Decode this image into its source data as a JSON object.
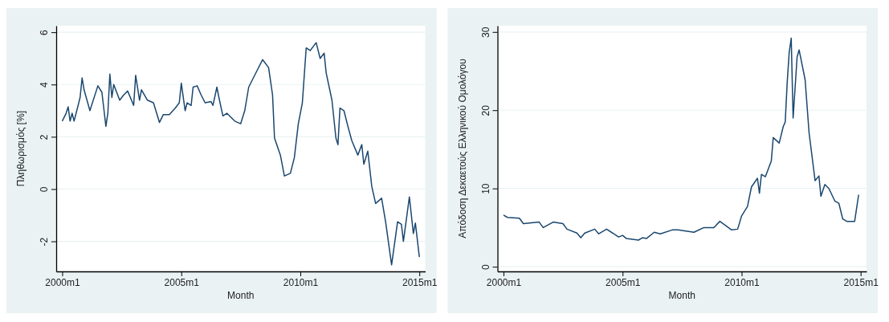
{
  "chart_data": [
    {
      "type": "line",
      "xlabel": "Month",
      "ylabel": "Πληθωρισμός [%]",
      "xlim": [
        "1999-10",
        "2015-04"
      ],
      "ylim": [
        -3.15,
        6.25
      ],
      "xticks": [
        {
          "value": "2000-01",
          "label": "2000m1"
        },
        {
          "value": "2005-01",
          "label": "2005m1"
        },
        {
          "value": "2010-01",
          "label": "2010m1"
        },
        {
          "value": "2015-01",
          "label": "2015m1"
        }
      ],
      "yticks": [
        {
          "value": -2,
          "label": "-2"
        },
        0,
        2,
        4,
        6
      ],
      "grid": "y",
      "line_style": "solid",
      "series": [
        {
          "color": "#1a476f",
          "x": [
            "2000-01",
            "2000-03",
            "2000-04",
            "2000-05",
            "2000-06",
            "2000-07",
            "2000-08",
            "2000-09",
            "2000-10",
            "2000-11",
            "2000-12",
            "2001-03",
            "2001-07",
            "2001-09",
            "2001-11",
            "2001-12",
            "2002-01",
            "2002-02",
            "2002-03",
            "2002-06",
            "2002-08",
            "2002-10",
            "2003-01",
            "2003-02",
            "2003-04",
            "2003-05",
            "2003-08",
            "2003-11",
            "2004-02",
            "2004-04",
            "2004-07",
            "2004-10",
            "2004-12",
            "2005-01",
            "2005-03",
            "2005-04",
            "2005-06",
            "2005-07",
            "2005-09",
            "2005-11",
            "2006-01",
            "2006-04",
            "2006-05",
            "2006-07",
            "2006-08",
            "2006-10",
            "2006-12",
            "2007-04",
            "2007-07",
            "2007-09",
            "2007-11",
            "2008-03",
            "2008-06",
            "2008-09",
            "2008-11",
            "2008-12",
            "2009-03",
            "2009-05",
            "2009-08",
            "2009-10",
            "2009-12",
            "2010-02",
            "2010-04",
            "2010-06",
            "2010-08",
            "2010-09",
            "2010-11",
            "2011-01",
            "2011-02",
            "2011-05",
            "2011-07",
            "2011-08",
            "2011-09",
            "2011-11",
            "2012-01",
            "2012-03",
            "2012-06",
            "2012-08",
            "2012-09",
            "2012-11",
            "2013-01",
            "2013-03",
            "2013-06",
            "2013-08",
            "2013-11",
            "2014-02",
            "2014-04",
            "2014-05",
            "2014-08",
            "2014-10",
            "2014-11",
            "2015-01"
          ],
          "values": [
            2.6,
            2.9,
            3.15,
            2.6,
            2.9,
            2.6,
            2.9,
            3.2,
            3.5,
            4.25,
            3.8,
            3.0,
            3.95,
            3.7,
            2.4,
            2.9,
            4.4,
            3.5,
            4.0,
            3.4,
            3.6,
            3.75,
            3.2,
            4.35,
            3.4,
            3.8,
            3.4,
            3.3,
            2.55,
            2.85,
            2.85,
            3.1,
            3.3,
            4.05,
            3.0,
            3.3,
            3.2,
            3.9,
            3.95,
            3.6,
            3.3,
            3.35,
            3.2,
            3.9,
            3.5,
            2.8,
            2.9,
            2.6,
            2.5,
            3.0,
            3.9,
            4.5,
            4.95,
            4.65,
            3.6,
            1.95,
            1.3,
            0.5,
            0.6,
            1.2,
            2.5,
            3.3,
            5.4,
            5.3,
            5.5,
            5.6,
            5.0,
            5.2,
            4.45,
            3.4,
            1.95,
            1.7,
            3.1,
            3.0,
            2.4,
            1.85,
            1.3,
            1.7,
            0.95,
            1.45,
            0.1,
            -0.55,
            -0.35,
            -1.25,
            -2.9,
            -1.25,
            -1.35,
            -2.0,
            -0.3,
            -1.7,
            -1.3,
            -2.6
          ]
        }
      ]
    },
    {
      "type": "line",
      "xlabel": "Month",
      "ylabel": "Απόδοση Δεκαετούς Ελληνικού Ομολόγου",
      "xlim": [
        "1999-10",
        "2015-04"
      ],
      "ylim": [
        -0.6,
        30.8
      ],
      "xticks": [
        {
          "value": "2000-01",
          "label": "2000m1"
        },
        {
          "value": "2005-01",
          "label": "2005m1"
        },
        {
          "value": "2010-01",
          "label": "2010m1"
        },
        {
          "value": "2015-01",
          "label": "2015m1"
        }
      ],
      "yticks": [
        0,
        10,
        20,
        30
      ],
      "grid": "y",
      "line_style": "solid",
      "series": [
        {
          "color": "#1a476f",
          "x": [
            "2000-01",
            "2000-03",
            "2000-09",
            "2000-11",
            "2001-07",
            "2001-09",
            "2002-02",
            "2002-07",
            "2002-09",
            "2003-02",
            "2003-04",
            "2003-06",
            "2003-11",
            "2004-01",
            "2004-05",
            "2004-11",
            "2005-01",
            "2005-03",
            "2005-09",
            "2005-11",
            "2006-01",
            "2006-05",
            "2006-08",
            "2007-02",
            "2007-05",
            "2008-01",
            "2008-06",
            "2008-11",
            "2009-02",
            "2009-08",
            "2009-11",
            "2010-01",
            "2010-04",
            "2010-06",
            "2010-09",
            "2010-10",
            "2010-11",
            "2011-01",
            "2011-04",
            "2011-05",
            "2011-08",
            "2011-10",
            "2011-11",
            "2011-12",
            "2012-01",
            "2012-02",
            "2012-03",
            "2012-05",
            "2012-06",
            "2012-09",
            "2012-11",
            "2013-02",
            "2013-04",
            "2013-05",
            "2013-07",
            "2013-09",
            "2013-12",
            "2014-02",
            "2014-04",
            "2014-06",
            "2014-10",
            "2014-12"
          ],
          "values": [
            6.6,
            6.3,
            6.2,
            5.5,
            5.7,
            5.0,
            5.7,
            5.5,
            4.8,
            4.3,
            3.7,
            4.3,
            4.8,
            4.2,
            4.8,
            3.8,
            4.0,
            3.6,
            3.4,
            3.7,
            3.6,
            4.4,
            4.2,
            4.7,
            4.7,
            4.4,
            5.0,
            5.0,
            5.8,
            4.7,
            4.8,
            6.5,
            7.7,
            10.2,
            11.3,
            9.4,
            11.8,
            11.5,
            13.5,
            16.5,
            15.8,
            17.9,
            18.5,
            23.5,
            27.4,
            29.2,
            19.0,
            26.8,
            27.7,
            23.9,
            17.1,
            11.0,
            11.6,
            9.0,
            10.5,
            10.0,
            8.4,
            8.1,
            6.1,
            5.8,
            5.8,
            9.2
          ]
        }
      ]
    }
  ]
}
